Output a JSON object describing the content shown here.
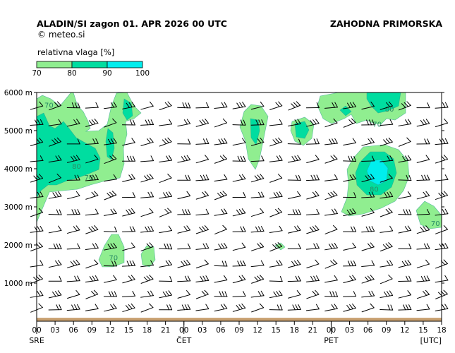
{
  "header": {
    "title": "ALADIN/SI  zagon 01. APR 2026 00 UTC",
    "region": "ZAHODNA PRIMORSKA",
    "credit": "© meteo.si"
  },
  "legend": {
    "title": "relativna vlaga [%]",
    "ticks": [
      "70",
      "80",
      "90",
      "100"
    ],
    "colors": [
      "#90ee90",
      "#00dda0",
      "#00eeee"
    ]
  },
  "colors": {
    "rh70": "#90ee90",
    "rh80": "#00dda0",
    "rh90": "#00eeee",
    "ground": "#c8a070"
  },
  "chart_data": {
    "type": "heatmap",
    "title": "",
    "xlabel": "",
    "ylabel": "",
    "xunit": "[UTC]",
    "ylim": [
      0,
      6000
    ],
    "yticks": [
      "1000 m",
      "2000 m",
      "3000 m",
      "4000 m",
      "5000 m",
      "6000 m"
    ],
    "xticks": [
      "00",
      "03",
      "06",
      "09",
      "12",
      "15",
      "18",
      "21",
      "00",
      "03",
      "06",
      "09",
      "12",
      "15",
      "18",
      "21",
      "00",
      "03",
      "06",
      "09",
      "12",
      "15",
      "18"
    ],
    "days": [
      {
        "label": "SRE",
        "at_hour": 0
      },
      {
        "label": "ČET",
        "at_hour": 24
      },
      {
        "label": "PET",
        "at_hour": 48
      }
    ],
    "hours_range": [
      0,
      66
    ],
    "contour_labels": [
      {
        "text": "70",
        "hour": 2.0,
        "height": 5600
      },
      {
        "text": "80",
        "hour": 6.5,
        "height": 4000
      },
      {
        "text": "70",
        "hour": 8.5,
        "height": 3700
      },
      {
        "text": "70",
        "hour": 12.5,
        "height": 1600
      },
      {
        "text": "80",
        "hour": 57.5,
        "height": 5500
      },
      {
        "text": "70",
        "hour": 55.5,
        "height": 5100
      },
      {
        "text": "80",
        "hour": 55.0,
        "height": 3400
      },
      {
        "text": "70",
        "hour": 65.0,
        "height": 2500
      }
    ]
  }
}
